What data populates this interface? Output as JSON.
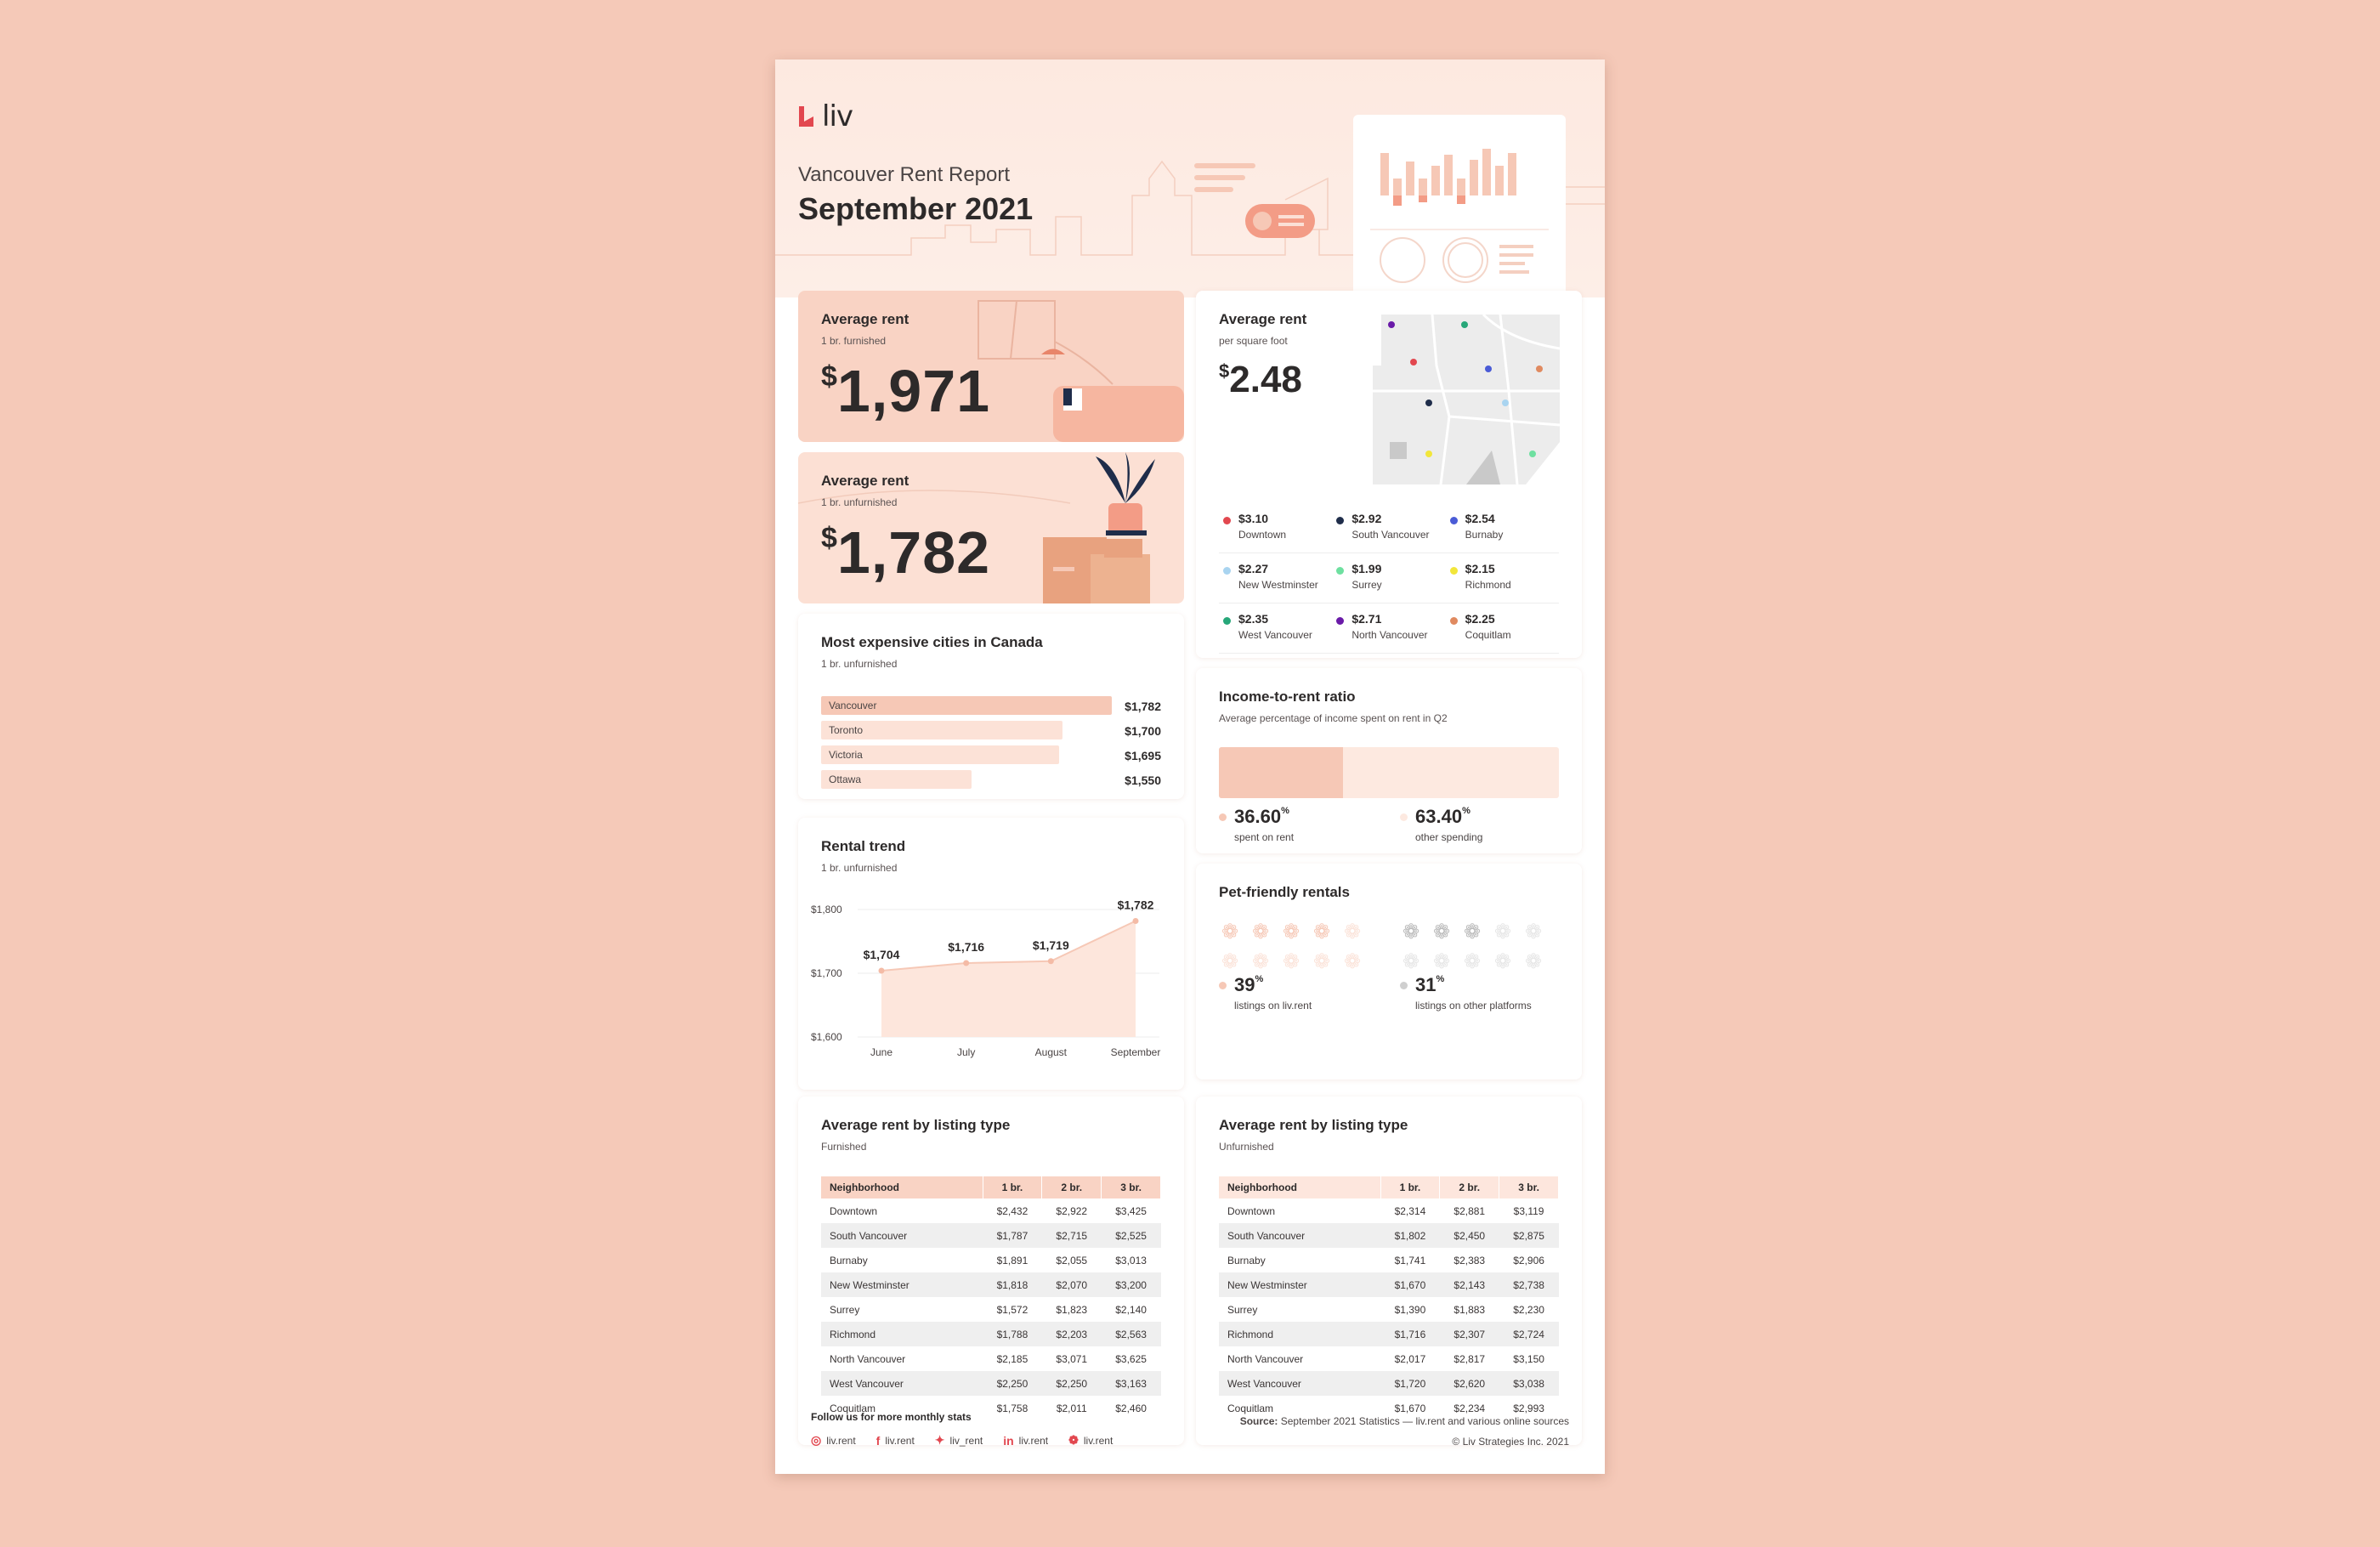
{
  "brand": {
    "name": "liv",
    "accent": "#e2474f"
  },
  "header": {
    "subtitle": "Vancouver Rent Report",
    "title": "September 2021"
  },
  "avg_furnished": {
    "title": "Average rent",
    "sub": "1 br. furnished",
    "currency": "$",
    "value": "1,971"
  },
  "avg_unfurnished": {
    "title": "Average rent",
    "sub": "1 br. unfurnished",
    "currency": "$",
    "value": "1,782"
  },
  "per_sqft": {
    "title": "Average rent",
    "sub": "per square foot",
    "currency": "$",
    "value": "2.48",
    "areas": [
      {
        "value": "$3.10",
        "name": "Downtown",
        "color": "#e2474f"
      },
      {
        "value": "$2.92",
        "name": "South Vancouver",
        "color": "#1f2d4a"
      },
      {
        "value": "$2.54",
        "name": "Burnaby",
        "color": "#4a5bd6"
      },
      {
        "value": "$2.27",
        "name": "New Westminster",
        "color": "#a9d4f0"
      },
      {
        "value": "$1.99",
        "name": "Surrey",
        "color": "#6ee0a0"
      },
      {
        "value": "$2.15",
        "name": "Richmond",
        "color": "#f2e63a"
      },
      {
        "value": "$2.35",
        "name": "West Vancouver",
        "color": "#27a779"
      },
      {
        "value": "$2.71",
        "name": "North Vancouver",
        "color": "#6a1aa8"
      },
      {
        "value": "$2.25",
        "name": "Coquitlam",
        "color": "#e08a60"
      }
    ]
  },
  "expensive": {
    "title": "Most expensive cities in Canada",
    "sub": "1 br. unfurnished",
    "rows": [
      {
        "city": "Vancouver",
        "label": "$1,782",
        "value": 1782
      },
      {
        "city": "Toronto",
        "label": "$1,700",
        "value": 1700
      },
      {
        "city": "Victoria",
        "label": "$1,695",
        "value": 1695
      },
      {
        "city": "Ottawa",
        "label": "$1,550",
        "value": 1550
      }
    ]
  },
  "ratio": {
    "title": "Income-to-rent ratio",
    "sub": "Average percentage of income spent on rent in Q2",
    "rent_value": "36.60",
    "rent_pct": "%",
    "rent_label": "spent on rent",
    "rent_fraction": 0.366,
    "other_value": "63.40",
    "other_pct": "%",
    "other_label": "other spending"
  },
  "trend": {
    "title": "Rental trend",
    "sub": "1 br. unfurnished"
  },
  "chart_data": {
    "type": "area",
    "categories": [
      "June",
      "July",
      "August",
      "September"
    ],
    "values": [
      1704,
      1716,
      1719,
      1782
    ],
    "data_labels": [
      "$1,704",
      "$1,716",
      "$1,719",
      "$1,782"
    ],
    "y_ticks": [
      "$1,800",
      "$1,700",
      "$1,600"
    ],
    "ylim": [
      1600,
      1800
    ],
    "grid": true
  },
  "pets": {
    "title": "Pet-friendly rentals",
    "liv_value": "39",
    "liv_pct": "%",
    "liv_label": "listings on liv.rent",
    "liv_fraction": 0.39,
    "other_value": "31",
    "other_pct": "%",
    "other_label": "listings on other platforms",
    "other_fraction": 0.31
  },
  "furnished_table": {
    "title": "Average rent by listing type",
    "sub": "Furnished",
    "headers": [
      "Neighborhood",
      "1 br.",
      "2 br.",
      "3 br."
    ],
    "rows": [
      [
        "Downtown",
        "$2,432",
        "$2,922",
        "$3,425"
      ],
      [
        "South Vancouver",
        "$1,787",
        "$2,715",
        "$2,525"
      ],
      [
        "Burnaby",
        "$1,891",
        "$2,055",
        "$3,013"
      ],
      [
        "New Westminster",
        "$1,818",
        "$2,070",
        "$3,200"
      ],
      [
        "Surrey",
        "$1,572",
        "$1,823",
        "$2,140"
      ],
      [
        "Richmond",
        "$1,788",
        "$2,203",
        "$2,563"
      ],
      [
        "North Vancouver",
        "$2,185",
        "$3,071",
        "$3,625"
      ],
      [
        "West Vancouver",
        "$2,250",
        "$2,250",
        "$3,163"
      ],
      [
        "Coquitlam",
        "$1,758",
        "$2,011",
        "$2,460"
      ]
    ]
  },
  "unfurnished_table": {
    "title": "Average rent by listing type",
    "sub": "Unfurnished",
    "headers": [
      "Neighborhood",
      "1 br.",
      "2 br.",
      "3 br."
    ],
    "rows": [
      [
        "Downtown",
        "$2,314",
        "$2,881",
        "$3,119"
      ],
      [
        "South Vancouver",
        "$1,802",
        "$2,450",
        "$2,875"
      ],
      [
        "Burnaby",
        "$1,741",
        "$2,383",
        "$2,906"
      ],
      [
        "New Westminster",
        "$1,670",
        "$2,143",
        "$2,738"
      ],
      [
        "Surrey",
        "$1,390",
        "$1,883",
        "$2,230"
      ],
      [
        "Richmond",
        "$1,716",
        "$2,307",
        "$2,724"
      ],
      [
        "North Vancouver",
        "$2,017",
        "$2,817",
        "$3,150"
      ],
      [
        "West Vancouver",
        "$1,720",
        "$2,620",
        "$3,038"
      ],
      [
        "Coquitlam",
        "$1,670",
        "$2,234",
        "$2,993"
      ]
    ]
  },
  "footer": {
    "follow": "Follow us for more monthly stats",
    "socials": [
      {
        "icon": "instagram-icon",
        "glyph": "◎",
        "label": "liv.rent"
      },
      {
        "icon": "facebook-icon",
        "glyph": "f",
        "label": "liv.rent"
      },
      {
        "icon": "twitter-icon",
        "glyph": "✦",
        "label": "liv_rent"
      },
      {
        "icon": "linkedin-icon",
        "glyph": "in",
        "label": "liv.rent"
      },
      {
        "icon": "wechat-icon",
        "glyph": "❁",
        "label": "liv.rent"
      }
    ],
    "source_label": "Source:",
    "source_text": "September 2021 Statistics — liv.rent and various online sources",
    "copyright": "© Liv Strategies Inc. 2021"
  }
}
